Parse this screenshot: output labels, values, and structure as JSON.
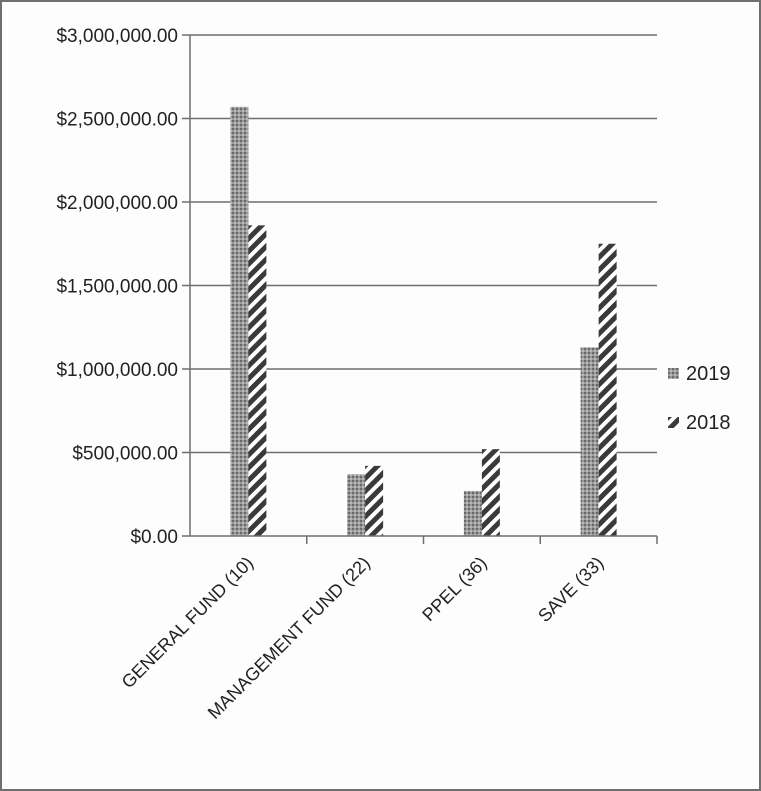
{
  "chart_data": {
    "type": "bar",
    "categories": [
      "GENERAL FUND (10)",
      "MANAGEMENT FUND (22)",
      "PPEL (36)",
      "SAVE (33)"
    ],
    "series": [
      {
        "name": "2019",
        "values": [
          2570000,
          370000,
          270000,
          1130000
        ],
        "color": "#8a8a8a",
        "pattern": "dotted"
      },
      {
        "name": "2018",
        "values": [
          1860000,
          420000,
          520000,
          1750000
        ],
        "color": "#3a3a3a",
        "pattern": "diagonal-stripes"
      }
    ],
    "ylim": [
      0,
      3000000
    ],
    "yticks": [
      "$0.00",
      "$500,000.00",
      "$1,000,000.00",
      "$1,500,000.00",
      "$2,000,000.00",
      "$2,500,000.00",
      "$3,000,000.00"
    ],
    "ytick_values": [
      0,
      500000,
      1000000,
      1500000,
      2000000,
      2500000,
      3000000
    ],
    "legend_position": "right",
    "grid": true
  }
}
